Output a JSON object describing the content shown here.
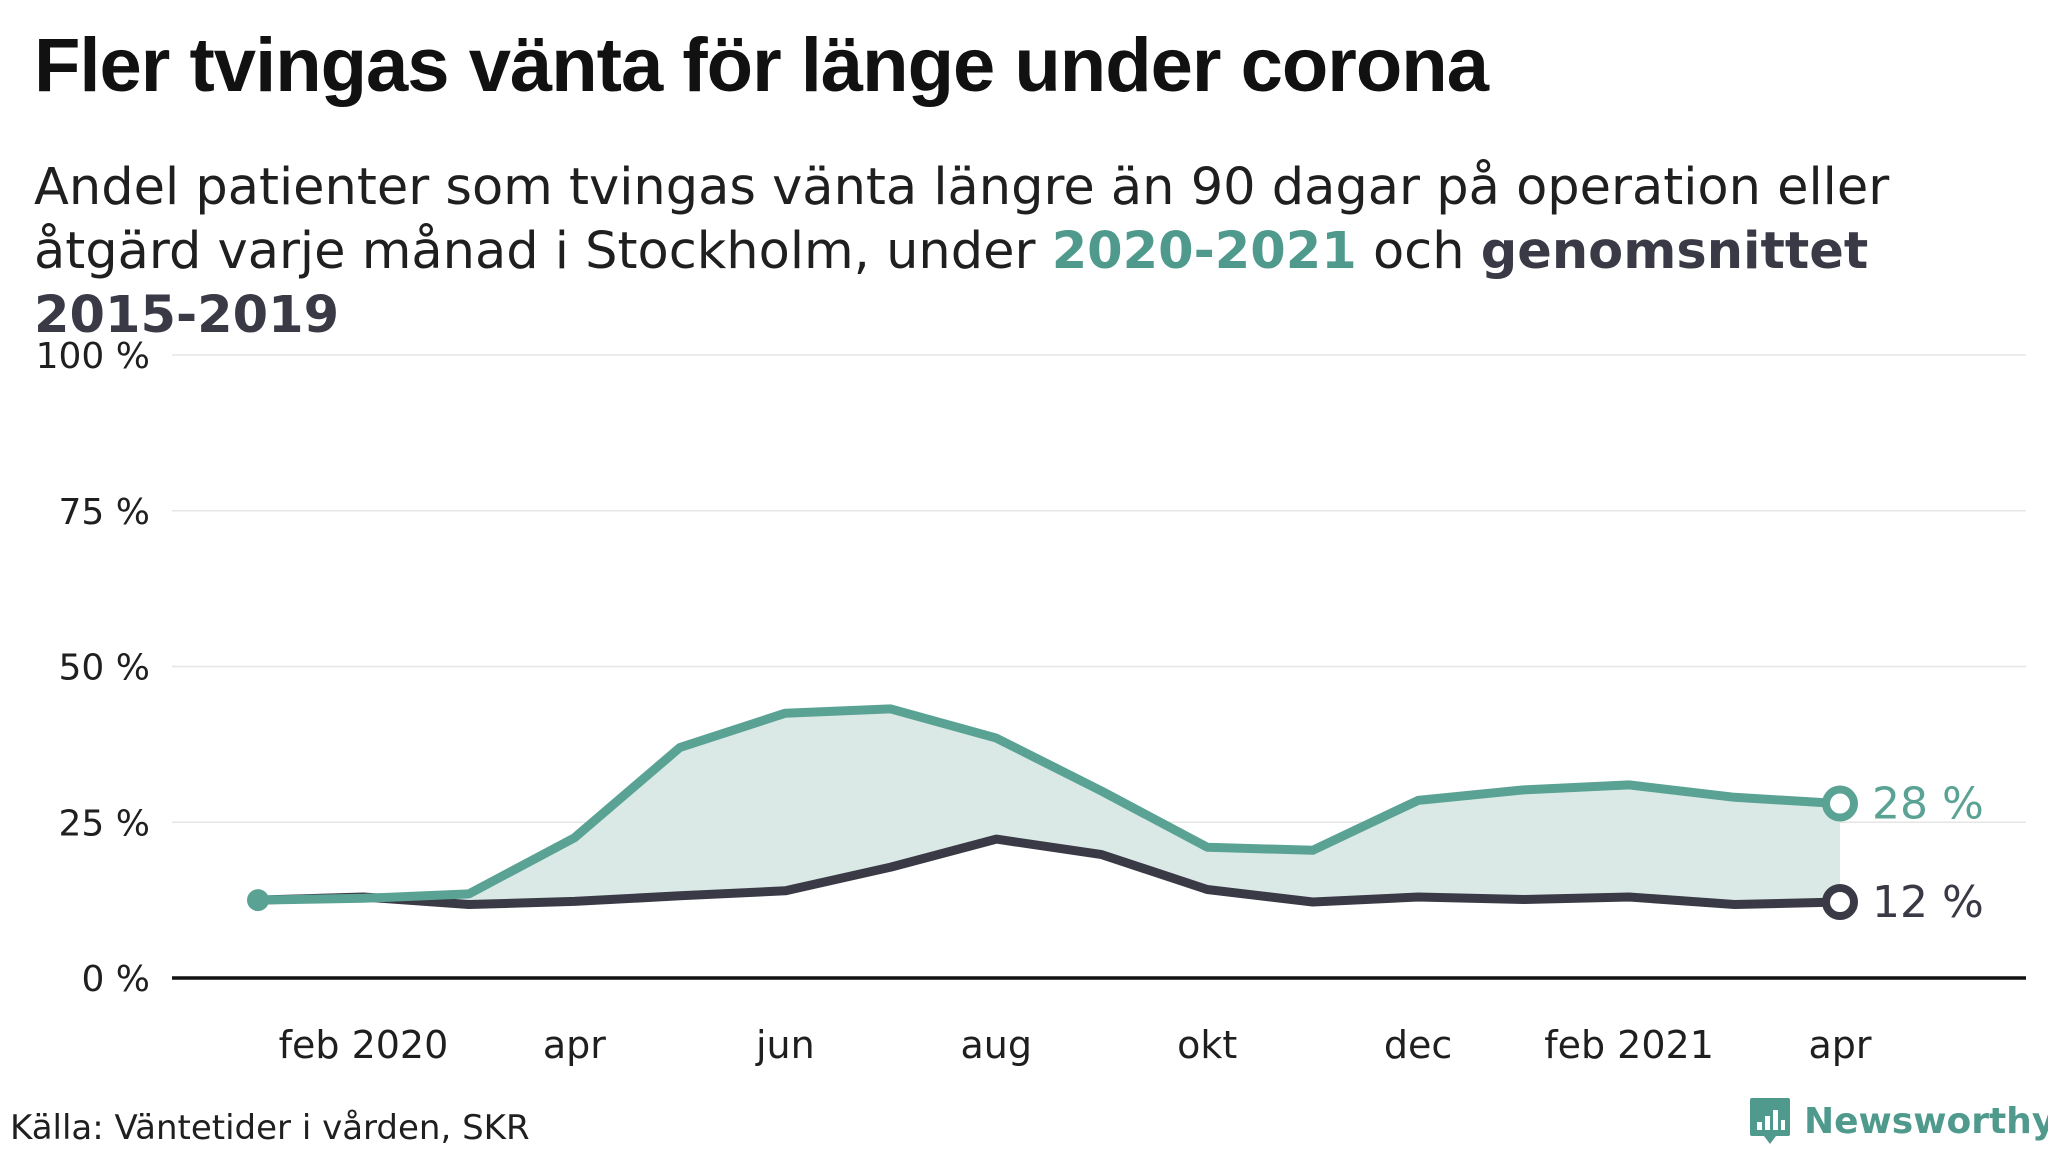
{
  "title": "Fler tvingas vänta för länge under corona",
  "subtitle": {
    "part1": "Andel patienter som tvingas vänta längre än 90 dagar på operation eller åtgärd varje månad i Stockholm, under ",
    "highlight_green": "2020-2021",
    "part2": " och ",
    "highlight_dark": "genomsnittet 2015-2019"
  },
  "source": "Källa: Väntetider i vården, SKR",
  "logo": {
    "text": "Newsworthy",
    "icon": "newsworthy-chart-icon"
  },
  "colors": {
    "series_2020_2021": "#5aa394",
    "series_avg": "#3a3a46",
    "area_fill": "#dbe9e6",
    "grid": "#e6e6e6",
    "axis": "#111111"
  },
  "chart_data": {
    "type": "line",
    "x": [
      "jan 2020",
      "feb 2020",
      "mar 2020",
      "apr 2020",
      "maj 2020",
      "jun 2020",
      "jul 2020",
      "aug 2020",
      "sep 2020",
      "okt 2020",
      "nov 2020",
      "dec 2020",
      "jan 2021",
      "feb 2021",
      "mar 2021",
      "apr 2021"
    ],
    "x_tick_labels": [
      {
        "index": 1,
        "label": "feb 2020"
      },
      {
        "index": 3,
        "label": "apr"
      },
      {
        "index": 5,
        "label": "jun"
      },
      {
        "index": 7,
        "label": "aug"
      },
      {
        "index": 9,
        "label": "okt"
      },
      {
        "index": 11,
        "label": "dec"
      },
      {
        "index": 13,
        "label": "feb 2021"
      },
      {
        "index": 15,
        "label": "apr"
      }
    ],
    "series": [
      {
        "name": "2020-2021",
        "values": [
          12.5,
          12.8,
          13.5,
          22.5,
          37,
          42.5,
          43.2,
          38.5,
          30,
          21,
          20.5,
          28.5,
          30.2,
          31,
          29,
          28
        ]
      },
      {
        "name": "genomsnittet 2015-2019",
        "values": [
          12.5,
          13,
          11.8,
          12.3,
          13.2,
          14,
          17.8,
          22.3,
          19.8,
          14.2,
          12.2,
          13,
          12.6,
          13,
          11.8,
          12.2
        ]
      }
    ],
    "end_labels": [
      "28 %",
      "12 %"
    ],
    "y_ticks": [
      0,
      25,
      50,
      75,
      100
    ],
    "y_tick_labels": [
      "0 %",
      "25 %",
      "50 %",
      "75 %",
      "100 %"
    ],
    "ylim": [
      0,
      100
    ],
    "grid": true,
    "legend": "none"
  }
}
